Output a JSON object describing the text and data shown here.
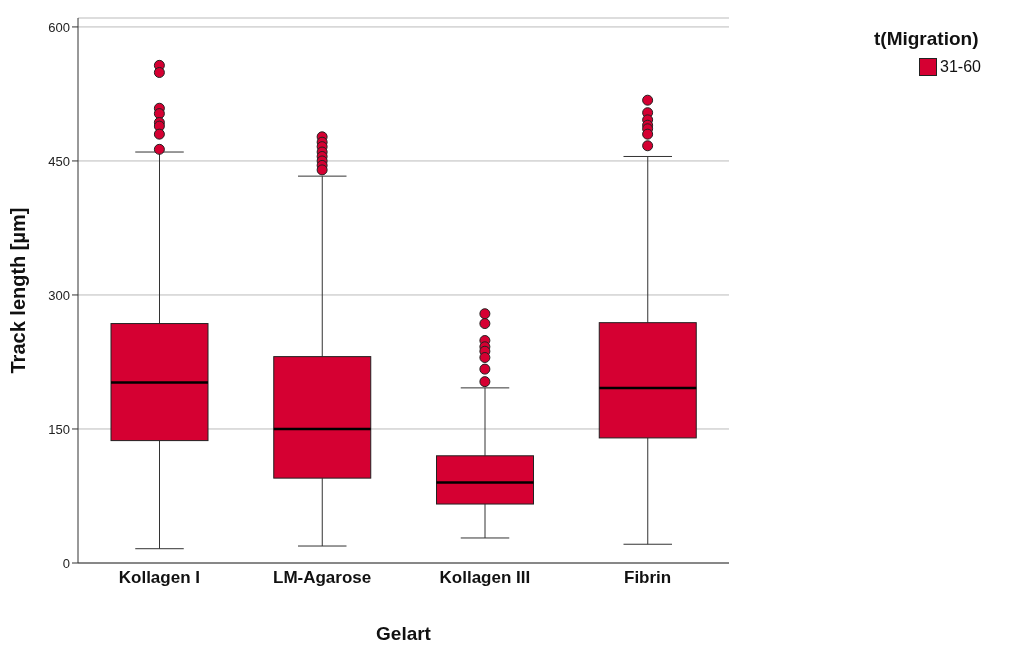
{
  "chart_data": {
    "type": "box",
    "xlabel": "Gelart",
    "ylabel": "Track length [µm]",
    "legend_title": "t(Migration)",
    "categories": [
      "Kollagen I",
      "LM-Agarose",
      "Kollagen III",
      "Fibrin"
    ],
    "series": [
      {
        "name": "31-60",
        "color": "#d50032",
        "boxes": [
          {
            "low": 16,
            "q1": 137,
            "median": 202,
            "q3": 268,
            "high": 460,
            "outliers": [
              557,
              549,
              509,
              503,
              493,
              489,
              480,
              463
            ]
          },
          {
            "low": 19,
            "q1": 95,
            "median": 150,
            "q3": 231,
            "high": 433,
            "outliers": [
              477,
              471,
              466,
              460,
              455,
              450,
              445,
              440
            ]
          },
          {
            "low": 28,
            "q1": 66,
            "median": 90,
            "q3": 120,
            "high": 196,
            "outliers": [
              279,
              268,
              249,
              242,
              237,
              230,
              217,
              203
            ]
          },
          {
            "low": 21,
            "q1": 140,
            "median": 196,
            "q3": 269,
            "high": 455,
            "outliers": [
              518,
              504,
              496,
              490,
              486,
              480,
              467
            ]
          }
        ]
      }
    ],
    "ylim": [
      0,
      610
    ],
    "yticks": [
      0,
      150,
      300,
      450,
      600
    ],
    "grid": "y",
    "legend": "top right"
  }
}
